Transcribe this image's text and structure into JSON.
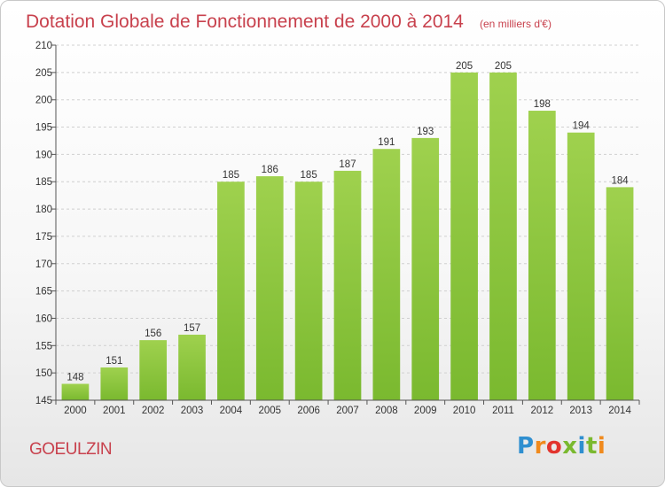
{
  "chart_data": {
    "type": "bar",
    "title": "Dotation Globale de Fonctionnement de 2000 à 2014",
    "subtitle": "(en milliers d'€)",
    "categories": [
      "2000",
      "2001",
      "2002",
      "2003",
      "2004",
      "2005",
      "2006",
      "2007",
      "2008",
      "2009",
      "2010",
      "2011",
      "2012",
      "2013",
      "2014"
    ],
    "values": [
      148,
      151,
      156,
      157,
      185,
      186,
      185,
      187,
      191,
      193,
      205,
      205,
      198,
      194,
      184
    ],
    "ylim": [
      145,
      210
    ],
    "yticks": [
      145,
      150,
      155,
      160,
      165,
      170,
      175,
      180,
      185,
      190,
      195,
      200,
      205,
      210
    ],
    "grid": true,
    "bar_color": "#7ab92f",
    "bar_color_light": "#9fd14e",
    "title_color": "#c8414d"
  },
  "footer": {
    "commune": "GOEULZIN",
    "logo_text": "Proxiti"
  },
  "logo_colors": [
    "#2f8fd0",
    "#f08a1d",
    "#e2342e",
    "#7ab92f",
    "#2f8fd0",
    "#7ab92f",
    "#f08a1d"
  ]
}
